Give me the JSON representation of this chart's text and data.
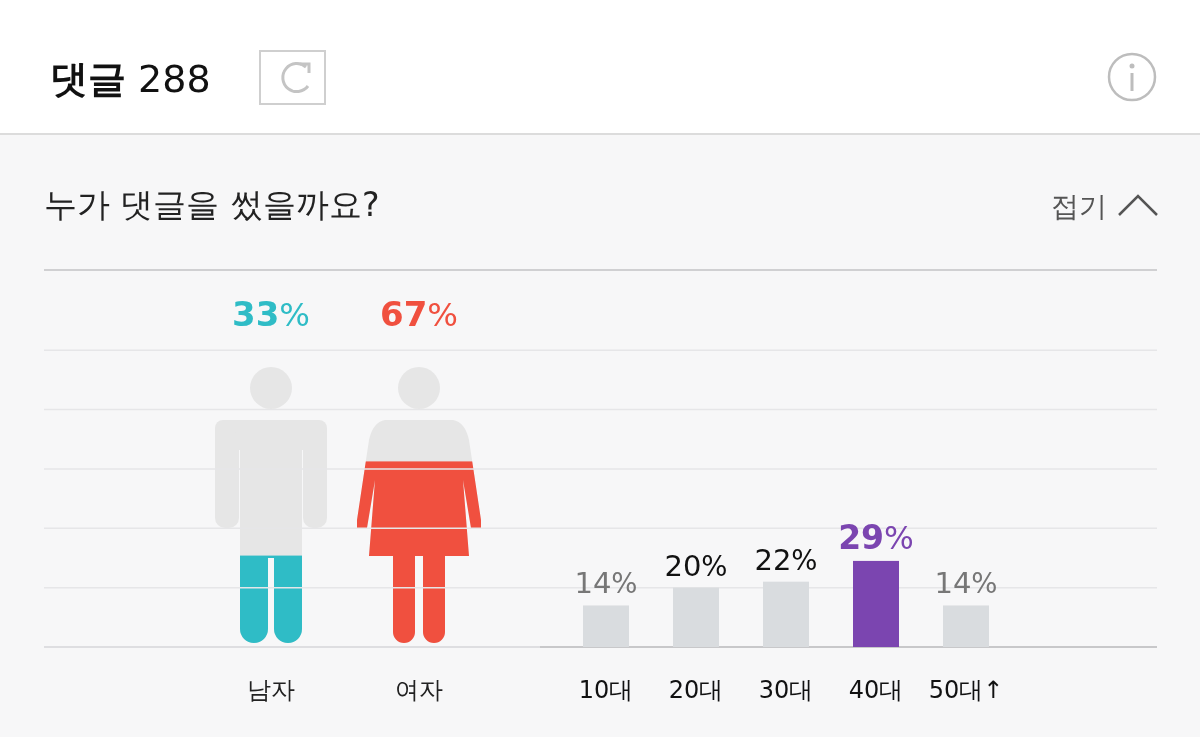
{
  "chart_data": [
    {
      "type": "bar",
      "title": "누가 댓글을 썼을까요?",
      "annotations": [
        "댓글 288",
        "접기"
      ],
      "categories": [
        "남자",
        "여자"
      ],
      "values": [
        33,
        67
      ],
      "value_labels": [
        "33%",
        "67%"
      ],
      "colors": [
        "#2fbcc6",
        "#f0503f"
      ]
    },
    {
      "type": "bar",
      "categories": [
        "10대",
        "20대",
        "30대",
        "40대",
        "50대↑"
      ],
      "values": [
        14,
        20,
        22,
        29,
        14
      ],
      "value_labels": [
        "14%",
        "20%",
        "22%",
        "29%",
        "14%"
      ],
      "colors": [
        "#d9dcdf",
        "#d9dcdf",
        "#d9dcdf",
        "#7b45b0",
        "#d9dcdf"
      ],
      "ylim": [
        0,
        127
      ],
      "yticks": [
        {
          "value": 0,
          "label": null
        },
        {
          "value": 20,
          "label": null
        },
        {
          "value": 40,
          "label": null
        },
        {
          "value": 60,
          "label": null
        },
        {
          "value": 80,
          "label": null
        },
        {
          "value": 100,
          "label": null
        }
      ],
      "tick_labels": "x",
      "grid": "y"
    }
  ]
}
